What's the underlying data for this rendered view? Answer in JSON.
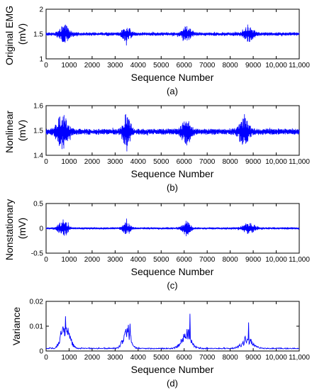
{
  "chart_data": [
    {
      "type": "line",
      "panel": "a",
      "caption": "(a)",
      "xlabel": "Sequence Number",
      "ylabel": [
        "Original EMG",
        "(mV)"
      ],
      "xlim": [
        0,
        11000
      ],
      "ylim": [
        1,
        2
      ],
      "xticks": [
        0,
        1000,
        2000,
        3000,
        4000,
        5000,
        6000,
        7000,
        8000,
        9000,
        10000,
        11000
      ],
      "xtick_labels": [
        "0",
        "1000",
        "2000",
        "3000",
        "4000",
        "5000",
        "6000",
        "7000",
        "8000",
        "9000",
        "10,000",
        "11,000"
      ],
      "yticks": [
        1,
        1.5,
        2
      ],
      "ytick_labels": [
        "1",
        "1.5",
        "2"
      ],
      "color": "#0000ff",
      "signal": {
        "kind": "oscillation",
        "n": 1100,
        "baseline": 1.5,
        "base_amp": 0.035,
        "bursts": [
          {
            "center": 800,
            "width": 450,
            "amp": 0.16
          },
          {
            "center": 3500,
            "width": 400,
            "amp": 0.13
          },
          {
            "center": 6100,
            "width": 450,
            "amp": 0.13
          },
          {
            "center": 8800,
            "width": 500,
            "amp": 0.13
          }
        ]
      }
    },
    {
      "type": "line",
      "panel": "b",
      "caption": "(b)",
      "xlabel": "Sequence Number",
      "ylabel": [
        "Nonlinear",
        "(mV)"
      ],
      "xlim": [
        0,
        11000
      ],
      "ylim": [
        1.4,
        1.6
      ],
      "xticks": [
        0,
        1000,
        2000,
        3000,
        4000,
        5000,
        6000,
        7000,
        8000,
        9000,
        10000,
        11000
      ],
      "xtick_labels": [
        "0",
        "1000",
        "2000",
        "3000",
        "4000",
        "5000",
        "6000",
        "7000",
        "8000",
        "9000",
        "10,000",
        "11,000"
      ],
      "yticks": [
        1.4,
        1.5,
        1.6
      ],
      "ytick_labels": [
        "1.4",
        "1.5",
        "1.6"
      ],
      "color": "#0000ff",
      "signal": {
        "kind": "oscillation",
        "n": 1100,
        "baseline": 1.495,
        "base_amp": 0.012,
        "bursts": [
          {
            "center": 700,
            "width": 550,
            "amp": 0.06
          },
          {
            "center": 3500,
            "width": 350,
            "amp": 0.07
          },
          {
            "center": 6100,
            "width": 450,
            "amp": 0.045
          },
          {
            "center": 8600,
            "width": 500,
            "amp": 0.045
          }
        ]
      }
    },
    {
      "type": "line",
      "panel": "c",
      "caption": "(c)",
      "xlabel": "Sequence Number",
      "ylabel": [
        "Nonstationary",
        "(mV)"
      ],
      "xlim": [
        0,
        11000
      ],
      "ylim": [
        -0.5,
        0.5
      ],
      "xticks": [
        0,
        1000,
        2000,
        3000,
        4000,
        5000,
        6000,
        7000,
        8000,
        9000,
        10000,
        11000
      ],
      "xtick_labels": [
        "0",
        "1000",
        "2000",
        "3000",
        "4000",
        "5000",
        "6000",
        "7000",
        "8000",
        "9000",
        "10,000",
        "11,000"
      ],
      "yticks": [
        -0.5,
        0,
        0.5
      ],
      "ytick_labels": [
        "-0.5",
        "0",
        "0.5"
      ],
      "color": "#0000ff",
      "signal": {
        "kind": "oscillation",
        "n": 1100,
        "baseline": 0,
        "base_amp": 0.02,
        "bursts": [
          {
            "center": 750,
            "width": 450,
            "amp": 0.16
          },
          {
            "center": 3500,
            "width": 350,
            "amp": 0.13
          },
          {
            "center": 6100,
            "width": 400,
            "amp": 0.14
          },
          {
            "center": 8800,
            "width": 550,
            "amp": 0.1
          }
        ]
      }
    },
    {
      "type": "line",
      "panel": "d",
      "caption": "(d)",
      "xlabel": "Sequence Number",
      "ylabel": [
        "Variance"
      ],
      "xlim": [
        0,
        11000
      ],
      "ylim": [
        0,
        0.02
      ],
      "xticks": [
        0,
        1000,
        2000,
        3000,
        4000,
        5000,
        6000,
        7000,
        8000,
        9000,
        10000,
        11000
      ],
      "xtick_labels": [
        "0",
        "1000",
        "2000",
        "3000",
        "4000",
        "5000",
        "6000",
        "7000",
        "8000",
        "9000",
        "10,000",
        "11,000"
      ],
      "yticks": [
        0,
        0.01,
        0.02
      ],
      "ytick_labels": [
        "0",
        "0.01",
        "0.02"
      ],
      "color": "#0000ff",
      "signal": {
        "kind": "envelope",
        "n": 600,
        "baseline": 0.0005,
        "base_amp": 0.0007,
        "bursts": [
          {
            "center": 850,
            "width": 500,
            "amp": 0.011
          },
          {
            "center": 3500,
            "width": 450,
            "amp": 0.0085
          },
          {
            "center": 6100,
            "width": 550,
            "amp": 0.008
          },
          {
            "center": 8750,
            "width": 650,
            "amp": 0.004
          }
        ],
        "peaks": [
          {
            "x": 850,
            "y": 0.014
          },
          {
            "x": 3650,
            "y": 0.011
          },
          {
            "x": 6250,
            "y": 0.015
          },
          {
            "x": 8800,
            "y": 0.0115
          }
        ]
      }
    }
  ]
}
